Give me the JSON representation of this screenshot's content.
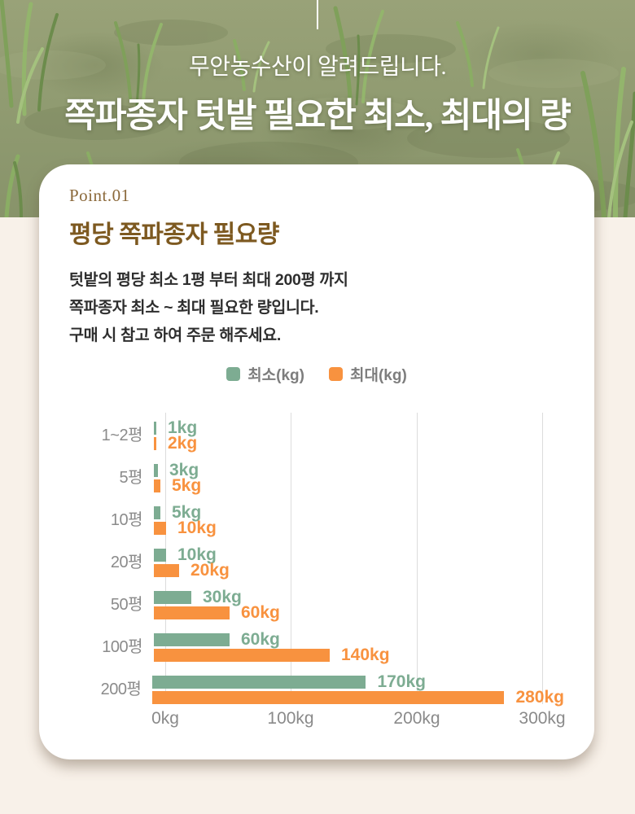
{
  "hero": {
    "subtitle": "무안농수산이 알려드립니다.",
    "title": "쪽파종자 텃밭 필요한 최소, 최대의 량"
  },
  "card": {
    "kicker": "Point.01",
    "title": "평당 쪽파종자 필요량",
    "description_lines": [
      "텃밭의 평당 최소 1평 부터 최대 200평 까지",
      "쪽파종자 최소 ~ 최대 필요한 량입니다.",
      "구매 시 참고 하여 주문 해주세요."
    ]
  },
  "chart_data": {
    "type": "bar",
    "orientation": "horizontal",
    "title": "",
    "categories": [
      "1~2평",
      "5평",
      "10평",
      "20평",
      "50평",
      "100평",
      "200평"
    ],
    "series": [
      {
        "name": "최소(kg)",
        "color": "#7dac92",
        "values": [
          1,
          3,
          5,
          10,
          30,
          60,
          170
        ]
      },
      {
        "name": "최대(kg)",
        "color": "#f8923f",
        "values": [
          2,
          5,
          10,
          20,
          60,
          140,
          280
        ]
      }
    ],
    "value_suffix": "kg",
    "x_ticks": [
      "0kg",
      "100kg",
      "200kg",
      "300kg"
    ],
    "xlim": [
      0,
      300
    ],
    "grid": true,
    "legend_position": "top",
    "value_labels": "outside-end"
  },
  "colors": {
    "min_series": "#7dac92",
    "max_series": "#f8923f",
    "heading_brown": "#7d5920",
    "kicker_brown": "#8b693b",
    "axis_gray": "#8a8a8a",
    "page_background": "#f8f1e9",
    "card_background": "#ffffff",
    "hero_overlay_olive": "#8f9a70"
  }
}
